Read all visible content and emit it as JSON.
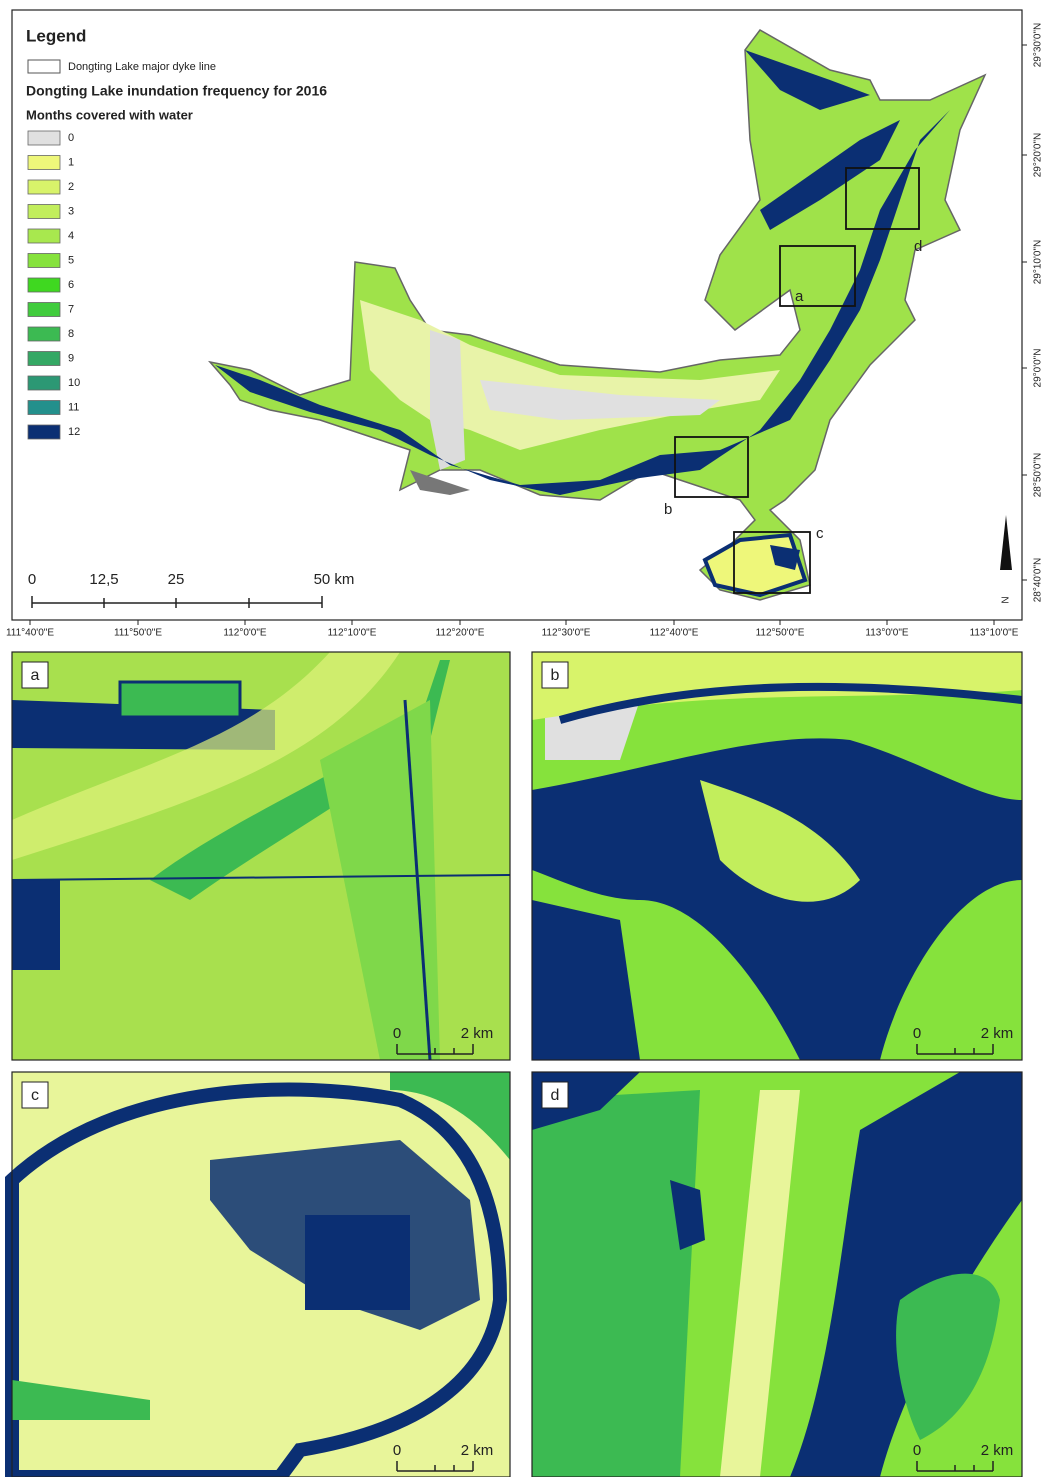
{
  "legend": {
    "title": "Legend",
    "dyke_label": "Dongting Lake major dyke line",
    "map_title": "Dongting Lake inundation frequency for 2016",
    "subtitle": "Months covered with water",
    "classes": [
      {
        "label": "0",
        "color": "#e0e0e0"
      },
      {
        "label": "1",
        "color": "#eef77a"
      },
      {
        "label": "2",
        "color": "#d8f36a"
      },
      {
        "label": "3",
        "color": "#c2ee5c"
      },
      {
        "label": "4",
        "color": "#a8e84e"
      },
      {
        "label": "5",
        "color": "#86e23c"
      },
      {
        "label": "6",
        "color": "#3fd820"
      },
      {
        "label": "7",
        "color": "#40cc3c"
      },
      {
        "label": "8",
        "color": "#3cba52"
      },
      {
        "label": "9",
        "color": "#34a864"
      },
      {
        "label": "10",
        "color": "#2c9874"
      },
      {
        "label": "11",
        "color": "#23908c"
      },
      {
        "label": "12",
        "color": "#0b2f73"
      }
    ]
  },
  "scale_bar": [
    "0",
    "12,5",
    "25",
    "50 km"
  ],
  "longitude_labels": [
    "111°40'0\"E",
    "111°50'0\"E",
    "112°0'0\"E",
    "112°10'0\"E",
    "112°20'0\"E",
    "112°30'0\"E",
    "112°40'0\"E",
    "112°50'0\"E",
    "113°0'0\"E",
    "113°10'0\"E"
  ],
  "latitude_labels": [
    "29°30'0\"N",
    "29°20'0\"N",
    "29°10'0\"N",
    "29°0'0\"N",
    "28°50'0\"N",
    "28°40'0\"N"
  ],
  "north_label": "N",
  "inset_boxes": [
    "a",
    "b",
    "c",
    "d"
  ],
  "panels": [
    {
      "label": "a",
      "scale": [
        "0",
        "2 km"
      ]
    },
    {
      "label": "b",
      "scale": [
        "0",
        "2 km"
      ]
    },
    {
      "label": "c",
      "scale": [
        "0",
        "2 km"
      ]
    },
    {
      "label": "d",
      "scale": [
        "0",
        "2 km"
      ]
    }
  ]
}
